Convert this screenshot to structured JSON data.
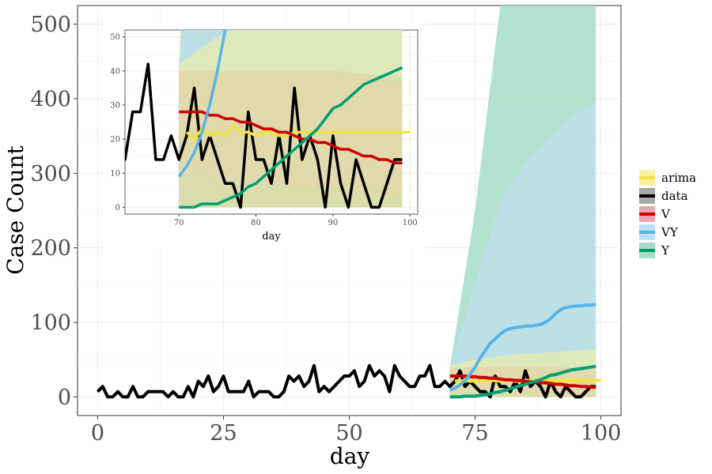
{
  "chart_data": [
    {
      "type": "line",
      "xlabel": "day",
      "ylabel": "Case Count",
      "xlim": [
        -4,
        104
      ],
      "ylim": [
        -25,
        525
      ],
      "x_ticks": [
        0,
        25,
        50,
        75,
        100
      ],
      "y_ticks": [
        0,
        100,
        200,
        300,
        400,
        500
      ],
      "grid": true,
      "legend_position": "right",
      "observed": {
        "name": "data",
        "x": [
          0,
          1,
          2,
          3,
          4,
          5,
          6,
          7,
          8,
          9,
          10,
          11,
          12,
          13,
          14,
          15,
          16,
          17,
          18,
          19,
          20,
          21,
          22,
          23,
          24,
          25,
          26,
          27,
          28,
          29,
          30,
          31,
          32,
          33,
          34,
          35,
          36,
          37,
          38,
          39,
          40,
          41,
          42,
          43,
          44,
          45,
          46,
          47,
          48,
          49,
          50,
          51,
          52,
          53,
          54,
          55,
          56,
          57,
          58,
          59,
          60,
          61,
          62,
          63,
          64,
          65,
          66,
          67,
          68,
          69,
          70,
          71,
          72,
          73,
          74,
          75,
          76,
          77,
          78,
          79,
          80,
          81,
          82,
          83,
          84,
          85,
          86,
          87,
          88,
          89,
          90,
          91,
          92,
          93,
          94,
          95,
          96,
          97,
          98,
          99
        ],
        "y": [
          7,
          14,
          0,
          0,
          7,
          0,
          0,
          14,
          0,
          0,
          7,
          7,
          7,
          7,
          0,
          7,
          0,
          0,
          14,
          0,
          21,
          14,
          28,
          7,
          14,
          28,
          7,
          7,
          7,
          7,
          21,
          0,
          7,
          7,
          7,
          0,
          0,
          7,
          28,
          21,
          28,
          14,
          21,
          42,
          7,
          14,
          7,
          14,
          21,
          28,
          28,
          35,
          14,
          21,
          42,
          28,
          35,
          28,
          7,
          42,
          28,
          21,
          14,
          14,
          28,
          28,
          42,
          14,
          14,
          21,
          14,
          21,
          35,
          14,
          21,
          14,
          7,
          7,
          0,
          28,
          14,
          14,
          7,
          21,
          7,
          35,
          14,
          21,
          14,
          0,
          21,
          7,
          0,
          14,
          7,
          0,
          0,
          7,
          14,
          14
        ]
      },
      "forecast_bands": [
        {
          "name": "Y",
          "x": [
            70,
            75,
            80,
            85,
            90,
            95,
            99
          ],
          "lower": [
            0,
            0,
            0,
            0,
            0,
            0,
            0
          ],
          "upper": [
            40,
            250,
            525,
            525,
            525,
            525,
            525
          ]
        },
        {
          "name": "VY",
          "x": [
            70,
            75,
            80,
            85,
            90,
            95,
            99
          ],
          "lower": [
            0,
            3,
            5,
            6,
            6,
            6,
            6
          ],
          "upper": [
            40,
            150,
            260,
            315,
            350,
            380,
            395
          ]
        },
        {
          "name": "data",
          "x": [
            70,
            75,
            80,
            85,
            90,
            95,
            99
          ],
          "lower": [
            0,
            0,
            0,
            0,
            0,
            0,
            0
          ],
          "upper": [
            40,
            40,
            40,
            40,
            40,
            39,
            38
          ]
        },
        {
          "name": "V",
          "x": [
            70,
            75,
            80,
            85,
            90,
            95,
            99
          ],
          "lower": [
            10,
            9,
            8,
            6,
            5,
            4,
            3
          ],
          "upper": [
            40,
            40,
            40,
            40,
            40,
            38,
            36
          ]
        },
        {
          "name": "arima",
          "x": [
            70,
            75,
            80,
            85,
            90,
            95,
            99
          ],
          "lower": [
            0,
            0,
            0,
            0,
            0,
            0,
            0
          ],
          "upper": [
            42,
            50,
            55,
            58,
            60,
            62,
            64
          ]
        }
      ],
      "series": [
        {
          "name": "arima",
          "x": [
            71,
            72,
            73,
            74,
            75,
            76,
            77,
            78,
            79,
            80,
            81,
            82,
            83,
            84,
            85,
            86,
            87,
            88,
            89,
            90,
            91,
            92,
            93,
            94,
            95,
            96,
            97,
            98,
            99,
            100
          ],
          "y": [
            22,
            20,
            23,
            21,
            22,
            21,
            24,
            22,
            22,
            21,
            22,
            22,
            21,
            21,
            22,
            22,
            22,
            22,
            22,
            22,
            22,
            22,
            22,
            22,
            22,
            22,
            22,
            22,
            22,
            22
          ]
        },
        {
          "name": "V",
          "x": [
            70,
            71,
            72,
            73,
            74,
            75,
            76,
            77,
            78,
            79,
            80,
            81,
            82,
            83,
            84,
            85,
            86,
            87,
            88,
            89,
            90,
            91,
            92,
            93,
            94,
            95,
            96,
            97,
            98,
            99
          ],
          "y": [
            28,
            28,
            28,
            28,
            27,
            27,
            26,
            26,
            25,
            25,
            24,
            23,
            23,
            22,
            22,
            21,
            20,
            20,
            19,
            19,
            18,
            17,
            17,
            16,
            15,
            15,
            14,
            14,
            13,
            13
          ]
        },
        {
          "name": "VY",
          "x": [
            70,
            71,
            72,
            73,
            74,
            75,
            76,
            77,
            78,
            79,
            80,
            81,
            82,
            83,
            84,
            85,
            86,
            87,
            88,
            89,
            90,
            91,
            92,
            93,
            94,
            95,
            96,
            97,
            98,
            99
          ],
          "y": [
            9,
            12,
            16,
            22,
            30,
            40,
            52,
            62,
            72,
            78,
            84,
            89,
            92,
            93,
            94,
            95,
            95,
            96,
            97,
            100,
            105,
            112,
            117,
            120,
            121,
            122,
            122,
            123,
            123,
            124
          ]
        },
        {
          "name": "Y",
          "x": [
            70,
            71,
            72,
            73,
            74,
            75,
            76,
            77,
            78,
            79,
            80,
            81,
            82,
            83,
            84,
            85,
            86,
            87,
            88,
            89,
            90,
            91,
            92,
            93,
            94,
            95,
            96,
            97,
            98,
            99
          ],
          "y": [
            0,
            0,
            0,
            1,
            1,
            1,
            2,
            3,
            4,
            6,
            7,
            9,
            11,
            13,
            15,
            17,
            19,
            21,
            23,
            26,
            29,
            30,
            32,
            34,
            36,
            37,
            38,
            39,
            40,
            41
          ]
        }
      ]
    },
    {
      "type": "line",
      "xlabel": "day",
      "ylabel": "",
      "xlim": [
        63,
        101
      ],
      "ylim": [
        -2,
        52
      ],
      "x_ticks": [
        70,
        80,
        90,
        100
      ],
      "y_ticks": [
        0,
        10,
        20,
        30,
        40,
        50
      ],
      "grid": true,
      "placement": "top-left"
    }
  ],
  "legend": {
    "entries": [
      {
        "label": "arima",
        "color": "#f0e442",
        "fill": "#f7f0a0"
      },
      {
        "label": "data",
        "color": "#000000",
        "fill": "#a8a8a8"
      },
      {
        "label": "V",
        "color": "#cc0000",
        "fill": "#e8a7b3"
      },
      {
        "label": "VY",
        "color": "#56b4e9",
        "fill": "#bfe0f5"
      },
      {
        "label": "Y",
        "color": "#009e73",
        "fill": "#a6dec8"
      }
    ]
  }
}
